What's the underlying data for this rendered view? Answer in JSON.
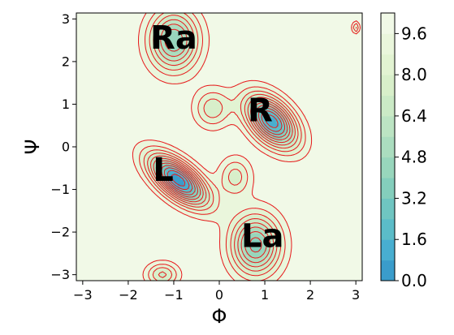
{
  "chart_data": {
    "type": "heatmap",
    "title": "",
    "xlabel": "Φ",
    "ylabel": "Ψ",
    "xlim": [
      -3.14,
      3.14
    ],
    "ylim": [
      -3.14,
      3.14
    ],
    "xticks": [
      "−3",
      "−2",
      "−1",
      "0",
      "1",
      "2",
      "3"
    ],
    "xtick_values": [
      -3,
      -2,
      -1,
      0,
      1,
      2,
      3
    ],
    "yticks": [
      "−3",
      "−2",
      "−1",
      "0",
      "1",
      "2",
      "3"
    ],
    "ytick_values": [
      -3,
      -2,
      -1,
      0,
      1,
      2,
      3
    ],
    "grid": false,
    "contour_line_color": "#e8191c",
    "colorbar": {
      "range": [
        0.0,
        10.4
      ],
      "ticks": [
        "0.0",
        "1.6",
        "3.2",
        "4.8",
        "6.4",
        "8.0",
        "9.6"
      ],
      "tick_values": [
        0.0,
        1.6,
        3.2,
        4.8,
        6.4,
        8.0,
        9.6
      ],
      "levels": [
        0.0,
        0.8,
        1.6,
        2.4,
        3.2,
        4.0,
        4.8,
        5.6,
        6.4,
        7.2,
        8.0,
        8.8,
        9.6,
        10.4
      ],
      "colors": [
        "#3a9ccb",
        "#48aed0",
        "#5bbcc8",
        "#6fc5c1",
        "#84cebc",
        "#98d6bc",
        "#abddbf",
        "#bce4c3",
        "#cbeac6",
        "#d8efca",
        "#e2f3d2",
        "#eaf6dc",
        "#f1f9e7"
      ]
    },
    "annotations": [
      {
        "text": "Ra",
        "x": -1.0,
        "y": 2.3
      },
      {
        "text": "R",
        "x": 0.9,
        "y": 0.6
      },
      {
        "text": "L",
        "x": -1.23,
        "y": -0.8
      },
      {
        "text": "La",
        "x": 0.95,
        "y": -2.35
      }
    ],
    "wells": [
      {
        "x": -0.9,
        "y": -0.78,
        "sa": 0.55,
        "sb": 0.26,
        "angle": -42,
        "depth": 10.2
      },
      {
        "x": 1.15,
        "y": 0.6,
        "sa": 0.5,
        "sb": 0.3,
        "angle": -50,
        "depth": 9.4
      },
      {
        "x": -1.0,
        "y": 2.5,
        "sa": 0.38,
        "sb": 0.5,
        "angle": 0,
        "depth": 6.4
      },
      {
        "x": 0.8,
        "y": -2.3,
        "sa": 0.38,
        "sb": 0.5,
        "angle": 0,
        "depth": 6.8
      },
      {
        "x": -0.15,
        "y": 0.9,
        "sa": 0.28,
        "sb": 0.32,
        "angle": 0,
        "depth": 3.0
      },
      {
        "x": 0.35,
        "y": -0.7,
        "sa": 0.25,
        "sb": 0.32,
        "angle": 0,
        "depth": 2.8
      },
      {
        "x": -1.25,
        "y": -3.0,
        "sa": 0.25,
        "sb": 0.2,
        "angle": 0,
        "depth": 3.4
      },
      {
        "x": 3.0,
        "y": 2.8,
        "sa": 0.06,
        "sb": 0.1,
        "angle": 0,
        "depth": 2.5
      }
    ],
    "data_max": 10.4
  }
}
